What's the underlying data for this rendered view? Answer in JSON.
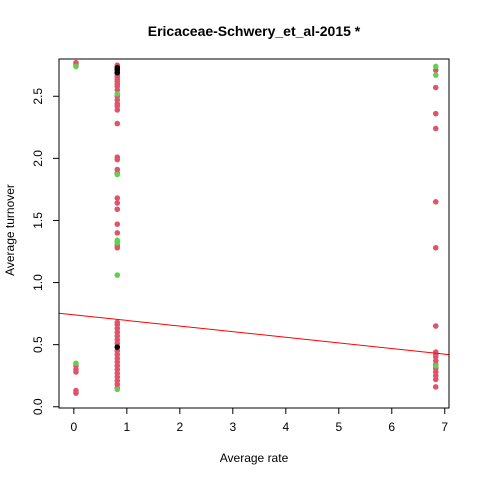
{
  "chart_data": {
    "type": "scatter",
    "title": "Ericaceae-Schwery_et_al-2015 *",
    "xlabel": "Average rate",
    "ylabel": "Average turnover",
    "xlim": [
      -0.28,
      7.08
    ],
    "ylim": [
      -0.01,
      2.8
    ],
    "xticks": [
      "0",
      "1",
      "2",
      "3",
      "4",
      "5",
      "6",
      "7"
    ],
    "yticks": [
      "0.0",
      "0.5",
      "1.0",
      "1.5",
      "2.0",
      "2.5"
    ],
    "grid": false,
    "legend": "none",
    "colors": {
      "red": "#DF536B",
      "green": "#61D04F",
      "black": "#000000",
      "line": "#FF0000"
    },
    "regression_line": {
      "x": [
        -0.28,
        7.08
      ],
      "y": [
        0.753,
        0.42
      ]
    },
    "series": [
      {
        "color_key": "red",
        "points": [
          [
            0.04,
            2.77
          ],
          [
            0.04,
            2.75
          ],
          [
            0.04,
            0.33
          ],
          [
            0.04,
            0.3
          ],
          [
            0.04,
            0.28
          ],
          [
            0.04,
            0.13
          ],
          [
            0.04,
            0.11
          ],
          [
            0.82,
            2.75
          ],
          [
            0.82,
            2.73
          ],
          [
            0.82,
            2.72
          ],
          [
            0.82,
            2.68
          ],
          [
            0.82,
            2.66
          ],
          [
            0.82,
            2.64
          ],
          [
            0.82,
            2.62
          ],
          [
            0.82,
            2.6
          ],
          [
            0.82,
            2.58
          ],
          [
            0.82,
            2.55
          ],
          [
            0.82,
            2.5
          ],
          [
            0.82,
            2.47
          ],
          [
            0.82,
            2.44
          ],
          [
            0.82,
            2.42
          ],
          [
            0.82,
            2.39
          ],
          [
            0.82,
            2.28
          ],
          [
            0.82,
            2.01
          ],
          [
            0.82,
            1.99
          ],
          [
            0.82,
            1.91
          ],
          [
            0.82,
            1.88
          ],
          [
            0.82,
            1.68
          ],
          [
            0.82,
            1.64
          ],
          [
            0.82,
            1.59
          ],
          [
            0.82,
            1.47
          ],
          [
            0.82,
            1.4
          ],
          [
            0.82,
            1.33
          ],
          [
            0.82,
            1.3
          ],
          [
            0.82,
            1.28
          ],
          [
            0.82,
            0.68
          ],
          [
            0.82,
            0.66
          ],
          [
            0.82,
            0.63
          ],
          [
            0.82,
            0.6
          ],
          [
            0.82,
            0.57
          ],
          [
            0.82,
            0.54
          ],
          [
            0.82,
            0.51
          ],
          [
            0.82,
            0.45
          ],
          [
            0.82,
            0.42
          ],
          [
            0.82,
            0.39
          ],
          [
            0.82,
            0.36
          ],
          [
            0.82,
            0.33
          ],
          [
            0.82,
            0.3
          ],
          [
            0.82,
            0.27
          ],
          [
            0.82,
            0.24
          ],
          [
            0.82,
            0.21
          ],
          [
            0.82,
            0.18
          ],
          [
            0.82,
            0.15
          ],
          [
            6.83,
            2.71
          ],
          [
            6.83,
            2.57
          ],
          [
            6.83,
            2.36
          ],
          [
            6.83,
            2.24
          ],
          [
            6.83,
            1.65
          ],
          [
            6.83,
            1.28
          ],
          [
            6.83,
            0.65
          ],
          [
            6.83,
            0.44
          ],
          [
            6.83,
            0.42
          ],
          [
            6.83,
            0.4
          ],
          [
            6.83,
            0.37
          ],
          [
            6.83,
            0.34
          ],
          [
            6.83,
            0.31
          ],
          [
            6.83,
            0.28
          ],
          [
            6.83,
            0.25
          ],
          [
            6.83,
            0.22
          ],
          [
            6.83,
            0.16
          ]
        ]
      },
      {
        "color_key": "green",
        "points": [
          [
            0.04,
            2.74
          ],
          [
            0.04,
            0.35
          ],
          [
            0.82,
            2.52
          ],
          [
            0.82,
            1.87
          ],
          [
            0.82,
            1.34
          ],
          [
            0.82,
            1.32
          ],
          [
            0.82,
            1.06
          ],
          [
            0.82,
            0.14
          ],
          [
            6.83,
            2.74
          ],
          [
            6.83,
            2.67
          ],
          [
            6.83,
            0.33
          ]
        ]
      },
      {
        "color_key": "black",
        "points": [
          [
            0.82,
            2.73
          ],
          [
            0.82,
            2.71
          ],
          [
            0.82,
            2.69
          ],
          [
            0.82,
            0.48
          ]
        ]
      }
    ]
  }
}
